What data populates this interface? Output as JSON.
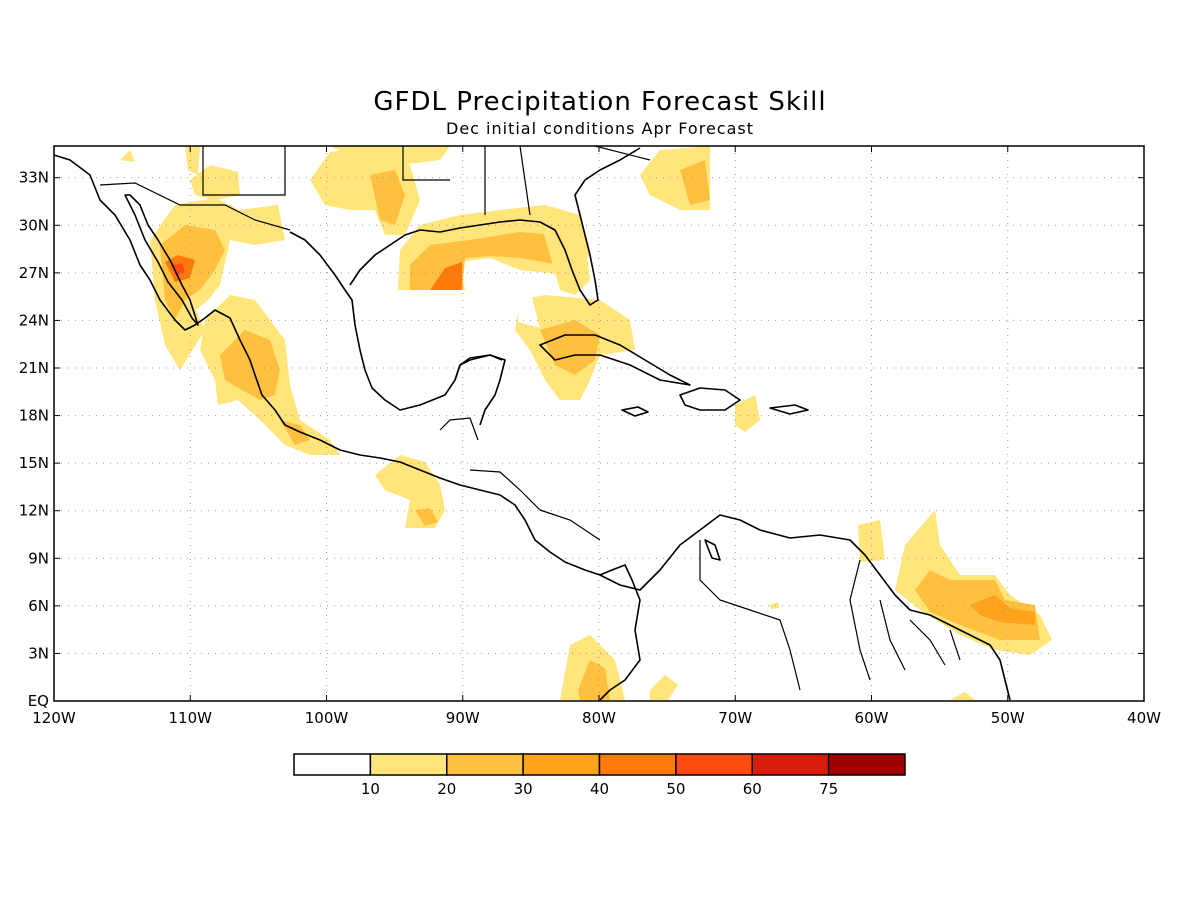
{
  "title": "GFDL Precipitation Forecast Skill",
  "subtitle": "Dec initial conditions  Apr Forecast",
  "lon_ticks": [
    "120W",
    "110W",
    "100W",
    "90W",
    "80W",
    "70W",
    "60W",
    "50W",
    "40W"
  ],
  "lat_ticks": [
    "EQ",
    "3N",
    "6N",
    "9N",
    "12N",
    "15N",
    "18N",
    "21N",
    "24N",
    "27N",
    "30N",
    "33N"
  ],
  "colorbar": {
    "colors": [
      "#ffffff",
      "#ffe57a",
      "#ffc040",
      "#ffa21c",
      "#ff7a0a",
      "#ff4a10",
      "#d81e0a",
      "#a00000"
    ],
    "labels": [
      "10",
      "20",
      "30",
      "40",
      "50",
      "60",
      "75"
    ]
  },
  "map_extent": {
    "lon_min": -120,
    "lon_max": -40,
    "lat_min": 0,
    "lat_max": 35
  }
}
